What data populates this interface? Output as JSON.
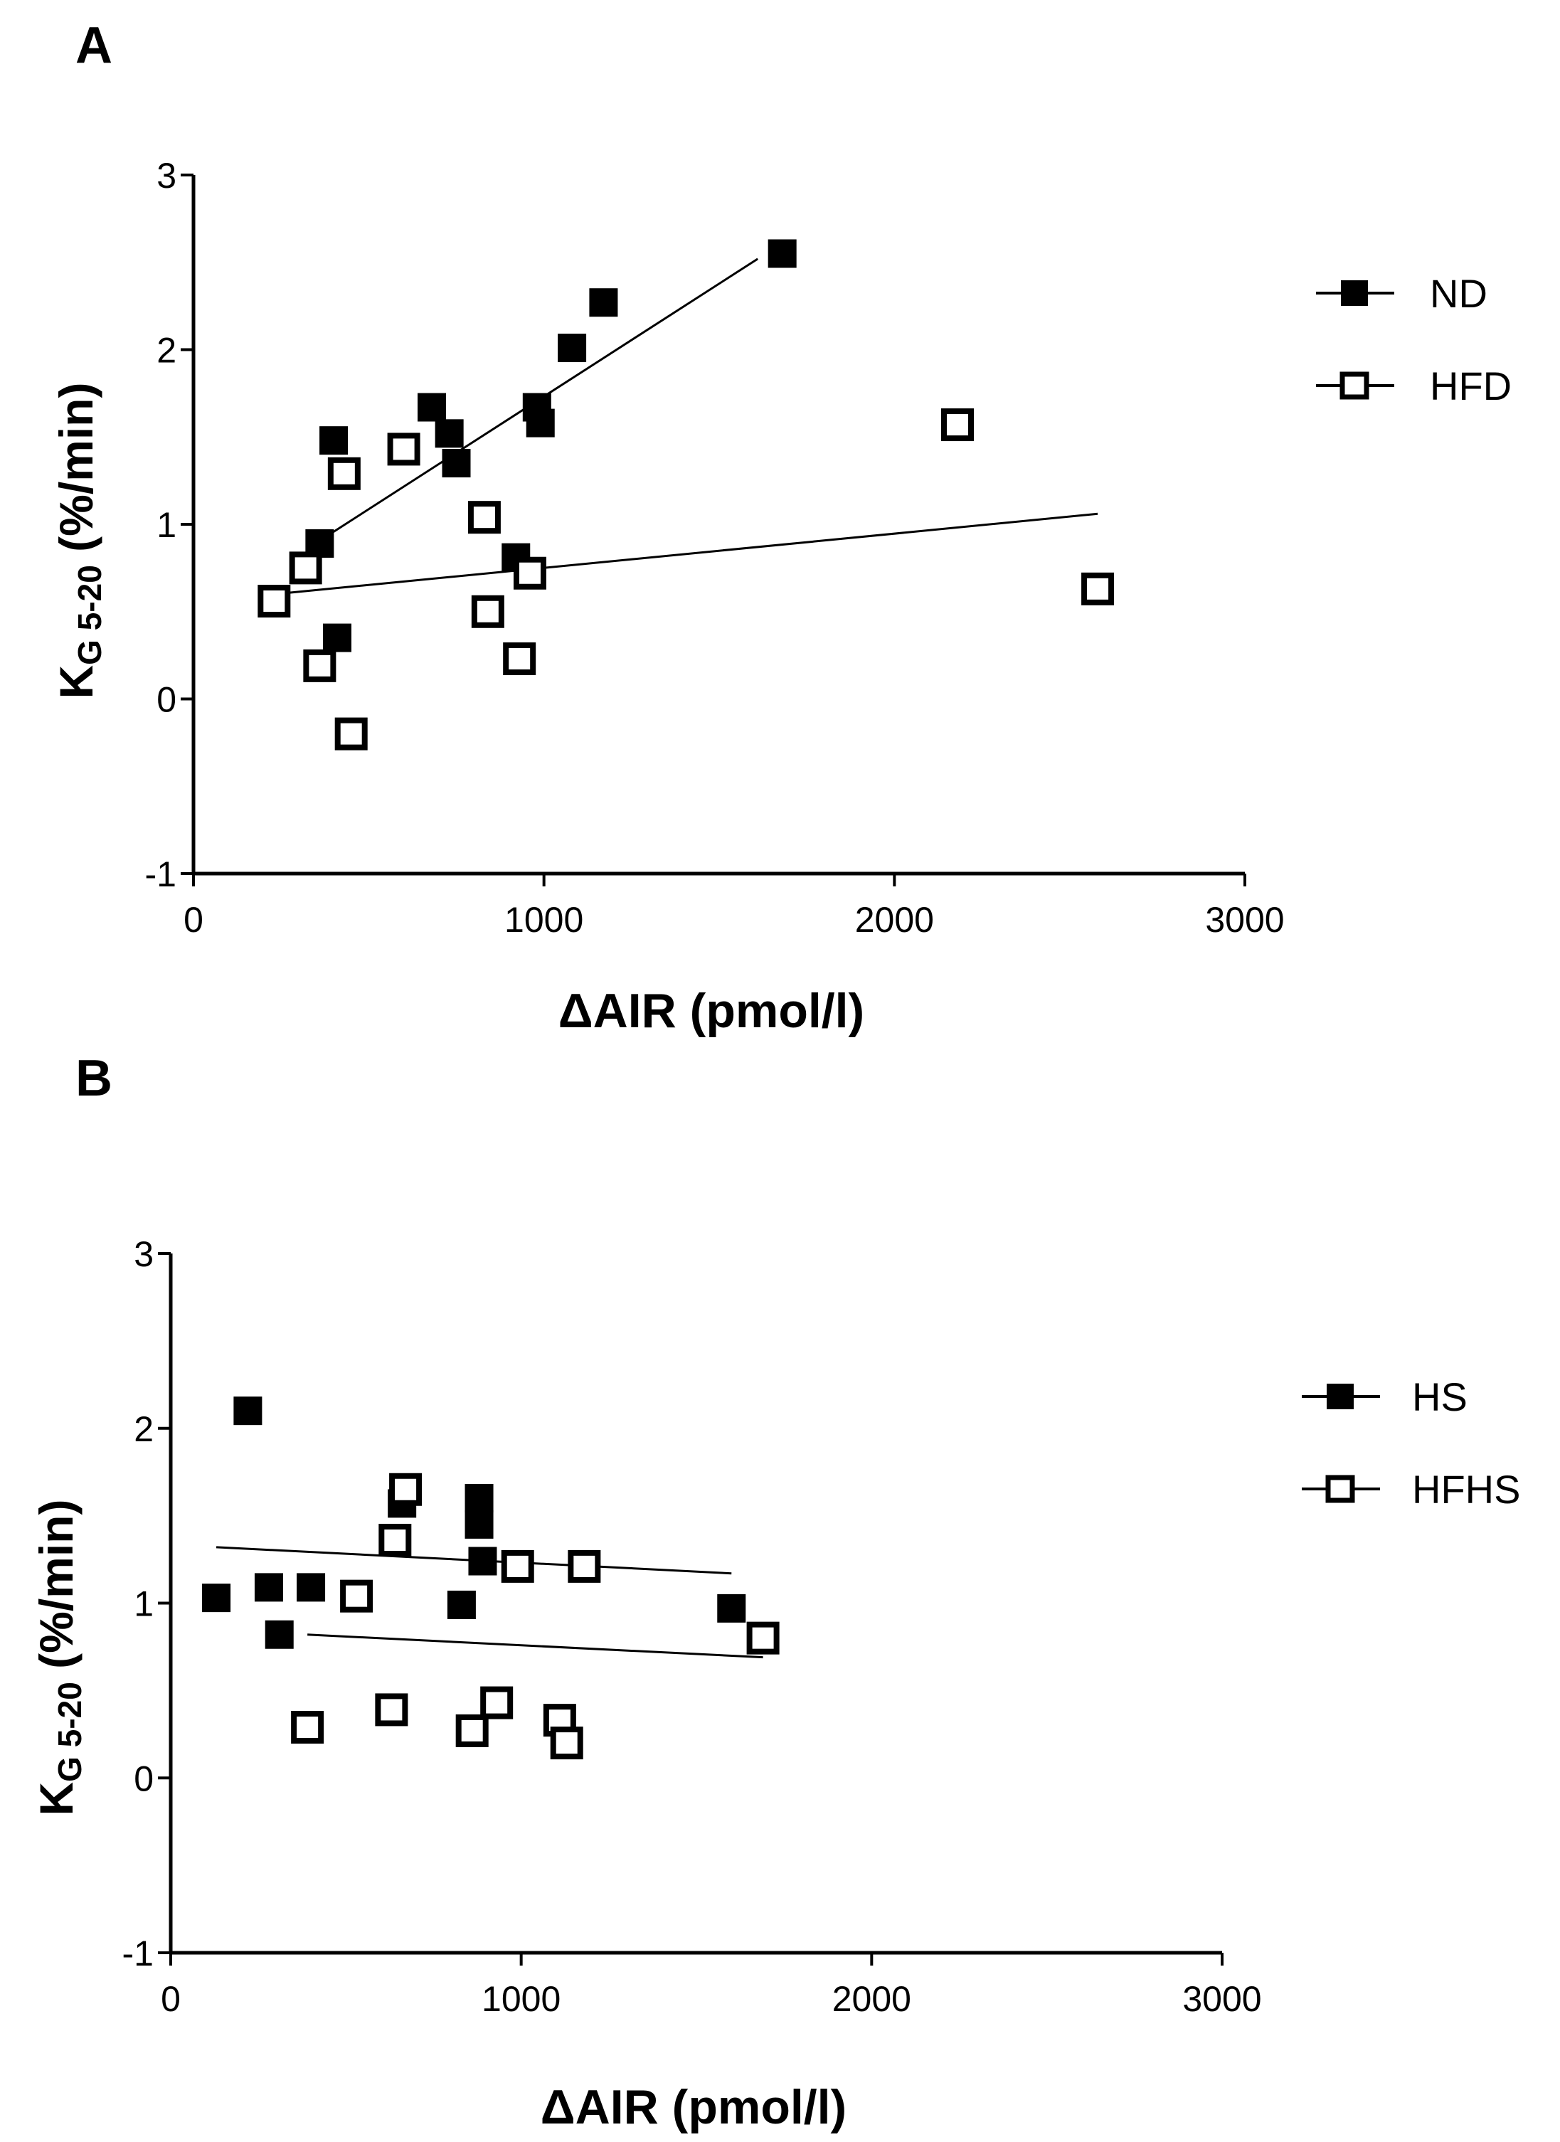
{
  "chart_data": [
    {
      "panel_label": "A",
      "type": "scatter",
      "xlabel": "ΔAIR (pmol/l)",
      "ylabel_main": "K",
      "ylabel_sub": "G 5-20",
      "ylabel_unit": " (%/min)",
      "xlim": [
        0,
        3000
      ],
      "ylim": [
        -1,
        3
      ],
      "xticks": [
        "0",
        "1000",
        "2000",
        "3000"
      ],
      "yticks": [
        "-1",
        "0",
        "1",
        "2",
        "3"
      ],
      "legend_position": "right",
      "series": [
        {
          "name": "ND",
          "marker": "filled-square",
          "points": [
            [
              360,
              0.89
            ],
            [
              400,
              1.48
            ],
            [
              410,
              0.35
            ],
            [
              680,
              1.67
            ],
            [
              730,
              1.52
            ],
            [
              750,
              1.35
            ],
            [
              920,
              0.81
            ],
            [
              980,
              1.67
            ],
            [
              990,
              1.58
            ],
            [
              1080,
              2.01
            ],
            [
              1170,
              2.27
            ],
            [
              1680,
              2.55
            ]
          ],
          "fit": [
            [
              340,
              0.88
            ],
            [
              1610,
              2.52
            ]
          ]
        },
        {
          "name": "HFD",
          "marker": "open-square",
          "points": [
            [
              230,
              0.56
            ],
            [
              320,
              0.75
            ],
            [
              360,
              0.19
            ],
            [
              430,
              1.29
            ],
            [
              450,
              -0.2
            ],
            [
              600,
              1.43
            ],
            [
              830,
              1.04
            ],
            [
              840,
              0.5
            ],
            [
              930,
              0.23
            ],
            [
              960,
              0.72
            ],
            [
              2180,
              1.57
            ],
            [
              2580,
              0.63
            ]
          ],
          "fit": [
            [
              230,
              0.6
            ],
            [
              2580,
              1.06
            ]
          ]
        }
      ]
    },
    {
      "panel_label": "B",
      "type": "scatter",
      "xlabel": "ΔAIR (pmol/l)",
      "ylabel_main": "K",
      "ylabel_sub": "G 5-20",
      "ylabel_unit": " (%/min)",
      "xlim": [
        0,
        3000
      ],
      "ylim": [
        -1,
        3
      ],
      "xticks": [
        "0",
        "1000",
        "2000",
        "3000"
      ],
      "yticks": [
        "-1",
        "0",
        "1",
        "2",
        "3"
      ],
      "legend_position": "right",
      "series": [
        {
          "name": "HS",
          "marker": "filled-square",
          "points": [
            [
              130,
              1.03
            ],
            [
              220,
              2.1
            ],
            [
              280,
              1.09
            ],
            [
              310,
              0.82
            ],
            [
              400,
              1.09
            ],
            [
              660,
              1.57
            ],
            [
              830,
              0.99
            ],
            [
              880,
              1.6
            ],
            [
              880,
              1.45
            ],
            [
              890,
              1.24
            ],
            [
              1600,
              0.97
            ]
          ],
          "fit": [
            [
              130,
              1.32
            ],
            [
              1600,
              1.17
            ]
          ]
        },
        {
          "name": "HFHS",
          "marker": "open-square",
          "points": [
            [
              390,
              0.29
            ],
            [
              530,
              1.04
            ],
            [
              630,
              0.39
            ],
            [
              640,
              1.36
            ],
            [
              670,
              1.65
            ],
            [
              860,
              0.27
            ],
            [
              930,
              0.43
            ],
            [
              990,
              1.21
            ],
            [
              1110,
              0.33
            ],
            [
              1130,
              0.2
            ],
            [
              1180,
              1.21
            ],
            [
              1690,
              0.8
            ]
          ],
          "fit": [
            [
              390,
              0.82
            ],
            [
              1690,
              0.69
            ]
          ]
        }
      ]
    }
  ]
}
